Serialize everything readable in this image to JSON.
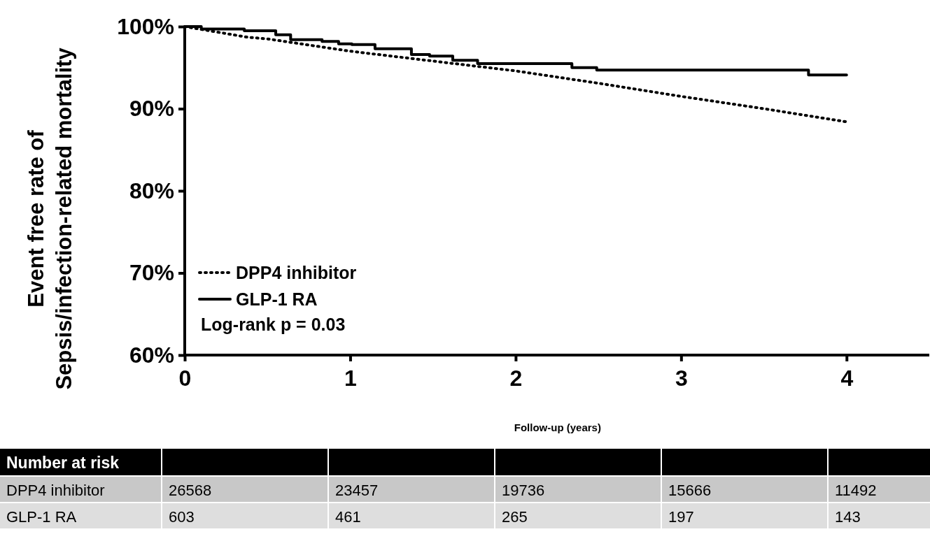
{
  "chart_data": {
    "type": "line",
    "ylabel": "Event free rate of\nSepsis/infection-related mortality",
    "xlabel": "Follow-up (years)",
    "xlim": [
      0,
      4.5
    ],
    "xticks": [
      0,
      1,
      2,
      3,
      4
    ],
    "ylim": [
      60,
      100
    ],
    "yticks": [
      {
        "value": 60,
        "label": "60%"
      },
      {
        "value": 70,
        "label": "70%"
      },
      {
        "value": 80,
        "label": "80%"
      },
      {
        "value": 90,
        "label": "90%"
      },
      {
        "value": 100,
        "label": "100%"
      }
    ],
    "grid": false,
    "legend": "bottom left",
    "marker": "none",
    "series": [
      {
        "name": "DPP4 inhibitor",
        "color": "#000000",
        "line_style": "dotted",
        "x": [
          0,
          0.38,
          0.5,
          1,
          1.5,
          2,
          2.5,
          3,
          3.5,
          4
        ],
        "values": [
          100,
          98.7,
          98.5,
          97.0,
          95.8,
          94.6,
          93.1,
          91.5,
          90.0,
          88.4
        ]
      },
      {
        "name": "GLP-1 RA",
        "color": "#000000",
        "type": "step",
        "line_style": "solid",
        "x": [
          0,
          0.1,
          0.36,
          0.55,
          0.64,
          0.83,
          0.93,
          1.01,
          1.15,
          1.37,
          1.48,
          1.62,
          1.77,
          2.34,
          2.49,
          3.77,
          4
        ],
        "values": [
          100,
          99.7,
          99.5,
          99.0,
          98.4,
          98.2,
          97.9,
          97.8,
          97.3,
          96.6,
          96.4,
          95.9,
          95.5,
          95.0,
          94.7,
          94.1,
          94.1
        ]
      }
    ],
    "annotations": [
      "Log-rank p = 0.03",
      "Number at risk",
      "DPP4 inhibitor",
      "26568",
      "23457",
      "19736",
      "15666",
      "11492",
      "GLP-1 RA",
      "603",
      "461",
      "265",
      "197",
      "143"
    ]
  }
}
